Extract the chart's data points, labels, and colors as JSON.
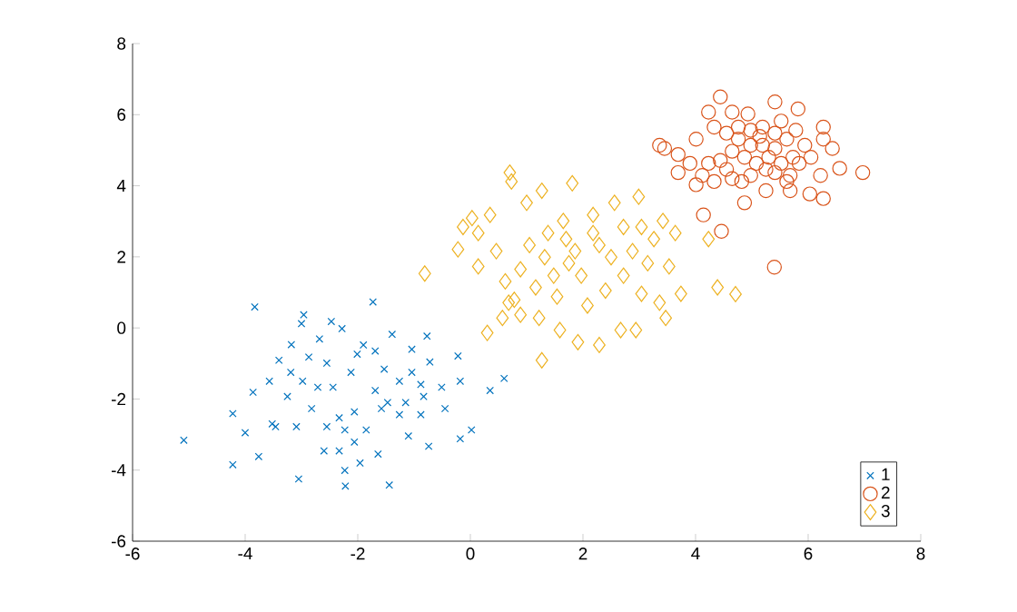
{
  "chart_data": {
    "type": "scatter",
    "xlim": [
      -6,
      8
    ],
    "ylim": [
      -6,
      8
    ],
    "xticks": [
      -6,
      -4,
      -2,
      0,
      2,
      4,
      6,
      8
    ],
    "yticks": [
      -6,
      -4,
      -2,
      0,
      2,
      4,
      6,
      8
    ],
    "grid": false,
    "legend": "bottom right",
    "series": [
      {
        "name": "1",
        "color": "#0072bd",
        "marker": "cross",
        "x": [
          -3.83,
          -1.73,
          -2.96,
          -3.0,
          -2.47,
          -2.28,
          -2.68,
          -3.18,
          -3.4,
          -3.57,
          -3.86,
          -4.22,
          -5.09,
          -4.22,
          -3.76,
          -3.05,
          -2.22,
          -1.44,
          -2.6,
          -2.33,
          -1.39,
          -0.77,
          -0.22,
          -0.72,
          -1.04,
          -0.88,
          -0.51,
          -0.18,
          0.35,
          0.6,
          0.02,
          -0.18,
          -0.74,
          -1.1,
          -1.64,
          -1.96,
          -2.23,
          -0.45,
          -0.88,
          -1.26,
          -1.47,
          -1.69,
          -1.53,
          -1.69,
          -1.9,
          -2.12,
          -2.44,
          -2.71,
          -2.98,
          -3.19,
          -3.25,
          -3.52,
          -3.46,
          -4.0,
          -3.09,
          -2.82,
          -2.55,
          -2.33,
          -2.23,
          -2.06,
          -1.85,
          -2.06,
          -1.58,
          -1.15,
          -1.26,
          -1.04,
          -2.55,
          -2.87,
          -2.01,
          -0.83
        ],
        "values": [
          0.59,
          0.73,
          0.37,
          0.12,
          0.18,
          -0.02,
          -0.31,
          -0.47,
          -0.91,
          -1.5,
          -1.81,
          -2.41,
          -3.16,
          -3.85,
          -3.62,
          -4.25,
          -4.45,
          -4.42,
          -3.46,
          -3.46,
          -0.18,
          -0.23,
          -0.79,
          -0.96,
          -0.6,
          -1.59,
          -1.67,
          -1.5,
          -1.76,
          -1.42,
          -2.87,
          -3.12,
          -3.33,
          -3.04,
          -3.55,
          -3.8,
          -4.01,
          -2.27,
          -2.44,
          -2.44,
          -2.1,
          -1.76,
          -1.16,
          -0.65,
          -0.48,
          -1.25,
          -1.67,
          -1.67,
          -1.5,
          -1.25,
          -1.93,
          -2.7,
          -2.78,
          -2.95,
          -2.78,
          -2.27,
          -2.78,
          -2.53,
          -2.87,
          -3.21,
          -2.87,
          -2.36,
          -2.27,
          -2.1,
          -1.5,
          -1.25,
          -0.99,
          -0.82,
          -0.74,
          -1.93
        ]
      },
      {
        "name": "2",
        "color": "#d95319",
        "marker": "circle",
        "x": [
          4.44,
          5.41,
          5.82,
          4.23,
          4.93,
          4.65,
          3.36,
          3.45,
          3.69,
          4.01,
          4.33,
          6.27,
          6.27,
          6.43,
          6.56,
          6.97,
          6.22,
          6.03,
          6.27,
          5.68,
          5.25,
          4.87,
          4.14,
          4.46,
          5.4,
          3.69,
          4.01,
          4.33,
          4.65,
          4.55,
          4.76,
          4.98,
          5.19,
          5.41,
          5.62,
          5.78,
          5.94,
          5.73,
          5.52,
          5.3,
          5.08,
          4.87,
          4.65,
          4.44,
          4.23,
          4.55,
          4.98,
          5.41,
          5.68,
          5.84,
          6.05,
          5.19,
          4.98,
          5.41,
          4.76,
          5.52,
          5.14,
          5.25,
          4.82,
          5.62,
          3.9,
          4.12
        ],
        "values": [
          6.5,
          6.36,
          6.16,
          6.07,
          6.02,
          6.07,
          5.14,
          5.05,
          4.88,
          5.31,
          5.65,
          5.65,
          5.31,
          5.05,
          4.49,
          4.37,
          4.29,
          3.77,
          3.64,
          3.86,
          3.86,
          3.52,
          3.18,
          2.72,
          1.71,
          4.37,
          4.03,
          4.12,
          4.2,
          5.48,
          5.31,
          5.56,
          5.65,
          5.48,
          5.31,
          5.56,
          5.14,
          4.8,
          4.63,
          4.8,
          4.63,
          4.8,
          4.97,
          4.71,
          4.63,
          4.46,
          4.29,
          4.37,
          4.29,
          4.63,
          4.8,
          5.14,
          5.14,
          5.05,
          5.65,
          5.82,
          5.39,
          4.46,
          4.12,
          4.12,
          4.63,
          4.29
        ]
      },
      {
        "name": "3",
        "color": "#edb120",
        "marker": "diamond",
        "x": [
          -0.81,
          -0.22,
          0.3,
          1.27,
          0.7,
          0.73,
          1.81,
          1.27,
          1.0,
          0.35,
          0.03,
          -0.13,
          0.14,
          0.46,
          0.14,
          0.62,
          0.78,
          0.89,
          1.22,
          1.59,
          1.91,
          2.29,
          2.67,
          2.94,
          3.47,
          3.36,
          3.74,
          3.04,
          3.53,
          3.64,
          3.42,
          2.99,
          2.56,
          2.18,
          1.65,
          1.38,
          1.05,
          0.89,
          1.16,
          1.54,
          1.86,
          1.75,
          1.97,
          2.29,
          2.18,
          2.5,
          2.72,
          2.4,
          2.08,
          2.88,
          3.15,
          3.26,
          3.04,
          2.72,
          1.32,
          1.48,
          1.7,
          4.39,
          4.23,
          0.68,
          0.57,
          4.71
        ],
        "values": [
          1.53,
          2.21,
          -0.14,
          -0.91,
          4.37,
          4.12,
          4.07,
          3.86,
          3.52,
          3.18,
          3.09,
          2.84,
          2.67,
          2.16,
          1.73,
          1.31,
          0.79,
          0.37,
          0.28,
          -0.06,
          -0.4,
          -0.48,
          -0.06,
          -0.06,
          0.28,
          0.71,
          0.96,
          0.96,
          1.73,
          2.67,
          3.01,
          3.69,
          3.52,
          3.18,
          3.01,
          2.67,
          2.33,
          1.65,
          1.14,
          0.88,
          2.16,
          1.82,
          1.47,
          2.33,
          2.67,
          1.99,
          1.47,
          1.05,
          0.63,
          2.16,
          1.82,
          2.5,
          2.84,
          2.84,
          1.99,
          1.47,
          2.5,
          1.14,
          2.5,
          0.71,
          0.28,
          0.95
        ]
      }
    ]
  }
}
